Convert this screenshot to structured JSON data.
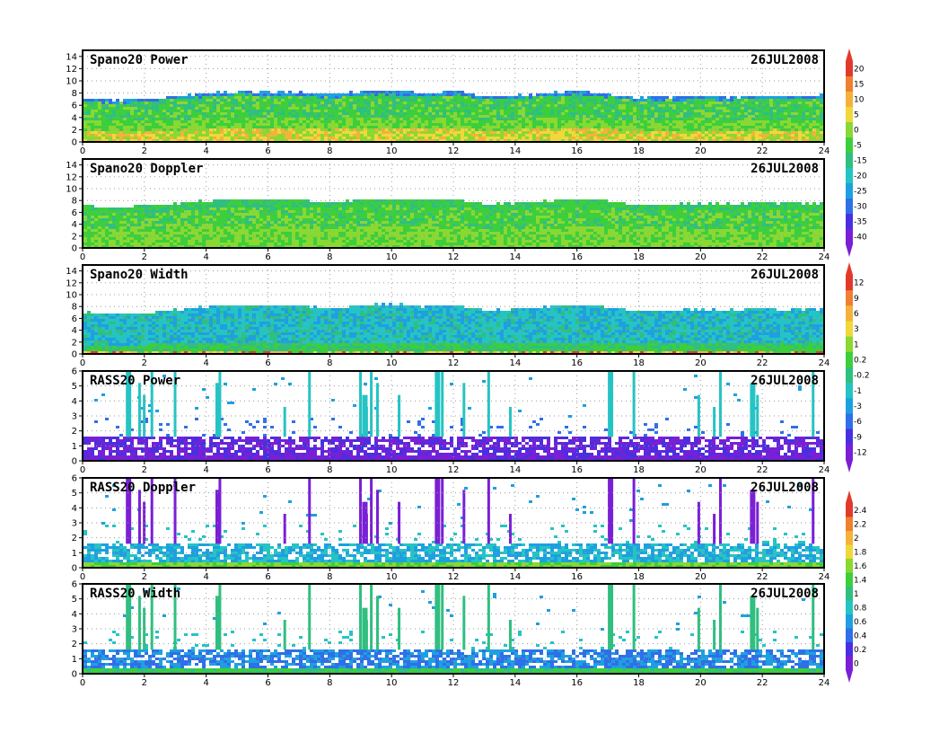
{
  "colors": {
    "background": "#ffffff",
    "frame": "#000000",
    "grid": "#9a9a9a",
    "palette": [
      "#7a1fd6",
      "#4a2fe0",
      "#2f6fe8",
      "#1ea0e0",
      "#25c4c4",
      "#2fbf80",
      "#3ccf3c",
      "#8ad832",
      "#f0d83a",
      "#f4b23a",
      "#ee8030",
      "#e23a2a"
    ]
  },
  "chart_data": [
    {
      "type": "heatmap",
      "title": "Spano20  Power",
      "date": "26JUL2008",
      "x_ticks": [
        "0",
        "2",
        "4",
        "6",
        "8",
        "10",
        "12",
        "14",
        "16",
        "18",
        "20",
        "22",
        "24"
      ],
      "xlim": [
        0,
        24
      ],
      "y_ticks": [
        "0",
        "2",
        "4",
        "6",
        "8",
        "10",
        "12",
        "14"
      ],
      "ylim": [
        0,
        15
      ],
      "echo_top": [
        7.3,
        7.0,
        7.3,
        7.7,
        8.2,
        8.5,
        8.4,
        8.3,
        7.9,
        8.5,
        8.6,
        8.2,
        8.5,
        7.6,
        7.8,
        8.2,
        8.6,
        8.0,
        7.4,
        7.6,
        7.7,
        7.6,
        7.8,
        7.8,
        7.8
      ],
      "fill": "power"
    },
    {
      "type": "heatmap",
      "title": "Spano20  Doppler",
      "date": "26JUL2008",
      "x_ticks": [
        "0",
        "2",
        "4",
        "6",
        "8",
        "10",
        "12",
        "14",
        "16",
        "18",
        "20",
        "22",
        "24"
      ],
      "xlim": [
        0,
        24
      ],
      "y_ticks": [
        "0",
        "2",
        "4",
        "6",
        "8",
        "10",
        "12",
        "14"
      ],
      "ylim": [
        0,
        15
      ],
      "echo_top": [
        7.3,
        7.0,
        7.3,
        7.7,
        8.2,
        8.5,
        8.4,
        8.3,
        7.9,
        8.5,
        8.6,
        8.2,
        8.5,
        7.6,
        7.8,
        8.2,
        8.6,
        8.0,
        7.4,
        7.6,
        7.7,
        7.6,
        7.8,
        7.8,
        7.8
      ],
      "fill": "doppler"
    },
    {
      "type": "heatmap",
      "title": "Spano20  Width",
      "date": "26JUL2008",
      "x_ticks": [
        "0",
        "2",
        "4",
        "6",
        "8",
        "10",
        "12",
        "14",
        "16",
        "18",
        "20",
        "22",
        "24"
      ],
      "xlim": [
        0,
        24
      ],
      "y_ticks": [
        "0",
        "2",
        "4",
        "6",
        "8",
        "10",
        "12",
        "14"
      ],
      "ylim": [
        0,
        15
      ],
      "echo_top": [
        7.3,
        7.0,
        7.3,
        7.7,
        8.2,
        8.5,
        8.4,
        8.3,
        7.9,
        8.5,
        8.6,
        8.2,
        8.5,
        7.6,
        7.8,
        8.2,
        8.6,
        8.0,
        7.4,
        7.6,
        7.7,
        7.6,
        7.8,
        7.8,
        7.8
      ],
      "fill": "width"
    },
    {
      "type": "heatmap",
      "title": "RASS20  Power",
      "date": "26JUL2008",
      "x_ticks": [
        "0",
        "2",
        "4",
        "6",
        "8",
        "10",
        "12",
        "14",
        "16",
        "18",
        "20",
        "22",
        "24"
      ],
      "xlim": [
        0,
        24
      ],
      "y_ticks": [
        "0",
        "1",
        "2",
        "3",
        "4",
        "5",
        "6"
      ],
      "ylim": [
        0,
        6
      ],
      "spikes": [
        1.4,
        1.8,
        1.95,
        2.2,
        2.95,
        4.3,
        4.4,
        6.5,
        7.3,
        8.95,
        9.05,
        9.15,
        9.3,
        9.5,
        10.2,
        11.4,
        11.6,
        12.3,
        13.1,
        13.8,
        17.0,
        17.8,
        19.9,
        20.4,
        20.6,
        21.6,
        21.8,
        23.6
      ],
      "fill": "rass_power"
    },
    {
      "type": "heatmap",
      "title": "RASS20  Doppler",
      "date": "26JUL2008",
      "x_ticks": [
        "0",
        "2",
        "4",
        "6",
        "8",
        "10",
        "12",
        "14",
        "16",
        "18",
        "20",
        "22",
        "24"
      ],
      "xlim": [
        0,
        24
      ],
      "y_ticks": [
        "0",
        "1",
        "2",
        "3",
        "4",
        "5",
        "6"
      ],
      "ylim": [
        0,
        6
      ],
      "spikes": [
        1.4,
        1.8,
        1.95,
        2.2,
        2.95,
        4.3,
        4.4,
        6.5,
        7.3,
        8.95,
        9.05,
        9.15,
        9.3,
        9.5,
        10.2,
        11.4,
        11.6,
        12.3,
        13.1,
        13.8,
        17.0,
        17.8,
        19.9,
        20.4,
        20.6,
        21.6,
        21.8,
        23.6
      ],
      "fill": "rass_doppler"
    },
    {
      "type": "heatmap",
      "title": "RASS20  Width",
      "date": "26JUL2008",
      "x_ticks": [
        "0",
        "2",
        "4",
        "6",
        "8",
        "10",
        "12",
        "14",
        "16",
        "18",
        "20",
        "22",
        "24"
      ],
      "xlim": [
        0,
        24
      ],
      "y_ticks": [
        "0",
        "1",
        "2",
        "3",
        "4",
        "5",
        "6"
      ],
      "ylim": [
        0,
        6
      ],
      "spikes": [
        1.4,
        1.8,
        1.95,
        2.2,
        2.95,
        4.3,
        4.4,
        6.5,
        7.3,
        8.95,
        9.05,
        9.15,
        9.3,
        9.5,
        10.2,
        11.4,
        11.6,
        12.3,
        13.1,
        13.8,
        17.0,
        17.8,
        19.9,
        20.4,
        20.6,
        21.6,
        21.8,
        23.6
      ],
      "fill": "rass_width"
    }
  ],
  "colorbars": [
    {
      "for": "Spano20 Power",
      "labels": [
        "20",
        "15",
        "10",
        "5",
        "0",
        "-5",
        "-15",
        "-20",
        "-25",
        "-30",
        "-35",
        "-40"
      ]
    },
    {
      "for": "Spano20 Width",
      "labels": [
        "12",
        "9",
        "6",
        "3",
        "1",
        "0.2",
        "-0.2",
        "-1",
        "-3",
        "-6",
        "-9",
        "-12"
      ]
    },
    {
      "for": "RASS20 Doppler",
      "labels": [
        "2.4",
        "2.2",
        "2",
        "1.8",
        "1.6",
        "1.4",
        "1",
        "0.8",
        "0.6",
        "0.4",
        "0.2",
        "0"
      ]
    }
  ]
}
